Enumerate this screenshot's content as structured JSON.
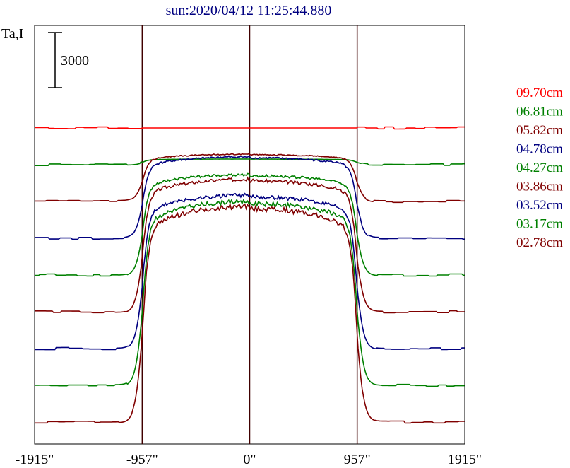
{
  "chart_data": {
    "type": "line",
    "title": "sun:2020/04/12 11:25:44.880",
    "ylabel": "Ta,I",
    "scale_bar_label": "3000",
    "scale_bar_value": 3000,
    "x_ticks": [
      {
        "value": -1915,
        "label": "-1915\""
      },
      {
        "value": -957,
        "label": "-957\""
      },
      {
        "value": 0,
        "label": "0\""
      },
      {
        "value": 957,
        "label": "957\""
      },
      {
        "value": 1915,
        "label": "1915\""
      }
    ],
    "xlim": [
      -1915,
      1915
    ],
    "vertical_lines_at": [
      -957,
      0,
      957
    ],
    "limb_radius": 957,
    "series": [
      {
        "name": "09.70cm",
        "color": "#ff0000",
        "baseline": 24800,
        "peak": 24800,
        "seed": 11
      },
      {
        "name": "06.81cm",
        "color": "#008000",
        "baseline": 22800,
        "peak": 23100,
        "seed": 23
      },
      {
        "name": "05.82cm",
        "color": "#800000",
        "baseline": 20800,
        "peak": 23300,
        "seed": 37
      },
      {
        "name": "04.78cm",
        "color": "#000080",
        "baseline": 18800,
        "peak": 23100,
        "seed": 41
      },
      {
        "name": "04.27cm",
        "color": "#008000",
        "baseline": 16800,
        "peak": 22100,
        "seed": 53
      },
      {
        "name": "03.86cm",
        "color": "#800000",
        "baseline": 14800,
        "peak": 21800,
        "seed": 67
      },
      {
        "name": "03.52cm",
        "color": "#000080",
        "baseline": 12800,
        "peak": 20900,
        "seed": 71
      },
      {
        "name": "03.17cm",
        "color": "#008000",
        "baseline": 10800,
        "peak": 20500,
        "seed": 83
      },
      {
        "name": "02.78cm",
        "color": "#800000",
        "baseline": 8800,
        "peak": 20200,
        "seed": 97
      }
    ]
  }
}
